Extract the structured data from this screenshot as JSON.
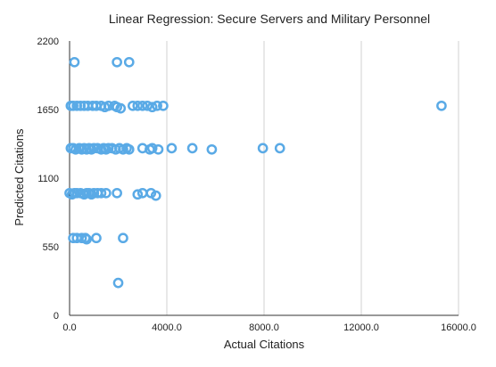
{
  "chart_data": {
    "type": "scatter",
    "title": "Linear Regression: Secure Servers and Military Personnel",
    "xlabel": "Actual Citations",
    "ylabel": "Predicted Citations",
    "xlim": [
      0,
      16000
    ],
    "ylim": [
      0,
      2200
    ],
    "x_ticks": [
      0,
      4000,
      8000,
      12000,
      16000
    ],
    "x_tick_labels": [
      "0.0",
      "4000.0",
      "8000.0",
      "12000.0",
      "16000.0"
    ],
    "y_ticks": [
      0,
      550,
      1100,
      1650,
      2200
    ],
    "y_tick_labels": [
      "0",
      "550",
      "1100",
      "1650",
      "2200"
    ],
    "grid": {
      "vertical": true,
      "horizontal": false
    },
    "point_color": "#5aaae6",
    "points": [
      [
        200,
        2030
      ],
      [
        1950,
        2030
      ],
      [
        2450,
        2030
      ],
      [
        50,
        1680
      ],
      [
        150,
        1680
      ],
      [
        300,
        1680
      ],
      [
        450,
        1680
      ],
      [
        600,
        1680
      ],
      [
        750,
        1680
      ],
      [
        950,
        1680
      ],
      [
        1100,
        1680
      ],
      [
        1300,
        1680
      ],
      [
        1450,
        1670
      ],
      [
        1600,
        1680
      ],
      [
        1850,
        1680
      ],
      [
        1950,
        1670
      ],
      [
        2100,
        1660
      ],
      [
        2600,
        1680
      ],
      [
        2800,
        1680
      ],
      [
        3000,
        1680
      ],
      [
        3200,
        1680
      ],
      [
        3400,
        1670
      ],
      [
        3600,
        1680
      ],
      [
        3850,
        1680
      ],
      [
        15300,
        1680
      ],
      [
        50,
        1340
      ],
      [
        150,
        1340
      ],
      [
        250,
        1330
      ],
      [
        400,
        1340
      ],
      [
        500,
        1330
      ],
      [
        600,
        1340
      ],
      [
        700,
        1330
      ],
      [
        800,
        1340
      ],
      [
        900,
        1330
      ],
      [
        1000,
        1340
      ],
      [
        1150,
        1340
      ],
      [
        1300,
        1330
      ],
      [
        1400,
        1340
      ],
      [
        1500,
        1330
      ],
      [
        1600,
        1340
      ],
      [
        1750,
        1340
      ],
      [
        1900,
        1330
      ],
      [
        2050,
        1340
      ],
      [
        2200,
        1330
      ],
      [
        2350,
        1340
      ],
      [
        2450,
        1330
      ],
      [
        3000,
        1340
      ],
      [
        3300,
        1330
      ],
      [
        3400,
        1340
      ],
      [
        3650,
        1330
      ],
      [
        4200,
        1340
      ],
      [
        5050,
        1340
      ],
      [
        5850,
        1330
      ],
      [
        7950,
        1340
      ],
      [
        8650,
        1340
      ],
      [
        0,
        980
      ],
      [
        100,
        970
      ],
      [
        200,
        980
      ],
      [
        300,
        980
      ],
      [
        450,
        980
      ],
      [
        600,
        970
      ],
      [
        700,
        980
      ],
      [
        800,
        980
      ],
      [
        900,
        970
      ],
      [
        1000,
        980
      ],
      [
        1150,
        980
      ],
      [
        1300,
        980
      ],
      [
        1500,
        980
      ],
      [
        1950,
        980
      ],
      [
        2800,
        970
      ],
      [
        3000,
        980
      ],
      [
        3350,
        980
      ],
      [
        3550,
        960
      ],
      [
        150,
        620
      ],
      [
        300,
        620
      ],
      [
        500,
        620
      ],
      [
        650,
        620
      ],
      [
        700,
        610
      ],
      [
        1100,
        620
      ],
      [
        2200,
        620
      ],
      [
        2000,
        260
      ]
    ]
  }
}
